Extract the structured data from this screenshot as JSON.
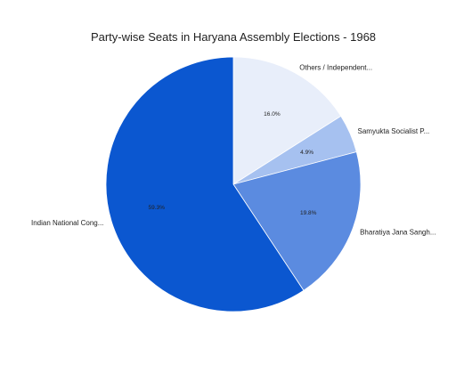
{
  "chart_data": {
    "type": "pie",
    "title": "Party-wise Seats in Haryana Assembly Elections - 1968",
    "slices": [
      {
        "label": "Others / Independent...",
        "value": 16.0,
        "pct_label": "16.0%",
        "color": "#e8eefa"
      },
      {
        "label": "Samyukta Socialist P...",
        "value": 4.9,
        "pct_label": "4.9%",
        "color": "#a6c1f0"
      },
      {
        "label": "Bharatiya Jana Sangh...",
        "value": 19.8,
        "pct_label": "19.8%",
        "color": "#5b8be0"
      },
      {
        "label": "Indian National Cong...",
        "value": 59.3,
        "pct_label": "59.3%",
        "color": "#0b57d0"
      }
    ],
    "legend": "none"
  }
}
